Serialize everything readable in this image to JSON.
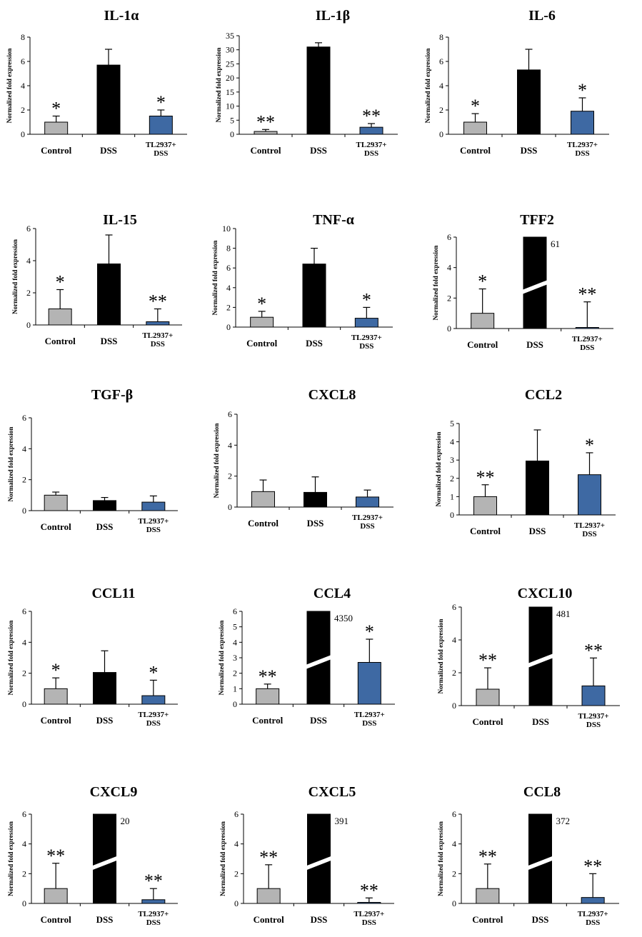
{
  "figure": {
    "y_axis_label": "Normalized fold expression",
    "bar_colors": {
      "Control": "#b4b4b4",
      "DSS": "#000000",
      "TL2937+DSS": "#3e69a3"
    }
  },
  "chart_data": [
    {
      "type": "bar",
      "title": "IL-1α",
      "ylabel": "Normalized fold expression",
      "categories": [
        "Control",
        "DSS",
        "TL2937+DSS"
      ],
      "values": [
        1.0,
        5.7,
        1.5
      ],
      "errors": [
        0.5,
        1.3,
        0.5
      ],
      "significance": [
        "*",
        "",
        "*"
      ],
      "ylim": [
        0,
        8
      ],
      "yticks": [
        0,
        2,
        4,
        6,
        8
      ],
      "break_labels": [
        "",
        "",
        ""
      ]
    },
    {
      "type": "bar",
      "title": "IL-1β",
      "ylabel": "Normalized fold expression",
      "categories": [
        "Control",
        "DSS",
        "TL2937+DSS"
      ],
      "values": [
        1.0,
        31.0,
        2.5
      ],
      "errors": [
        0.7,
        1.5,
        1.3
      ],
      "significance": [
        "**",
        "",
        "**"
      ],
      "ylim": [
        0,
        35
      ],
      "yticks": [
        0,
        5,
        10,
        15,
        20,
        25,
        30,
        35
      ],
      "break_labels": [
        "",
        "",
        ""
      ]
    },
    {
      "type": "bar",
      "title": "IL-6",
      "ylabel": "Normalized fold expression",
      "categories": [
        "Control",
        "DSS",
        "TL2937+DSS"
      ],
      "values": [
        1.0,
        5.3,
        1.9
      ],
      "errors": [
        0.7,
        1.7,
        1.1
      ],
      "significance": [
        "*",
        "",
        "*"
      ],
      "ylim": [
        0,
        8
      ],
      "yticks": [
        0,
        2,
        4,
        6,
        8
      ],
      "break_labels": [
        "",
        "",
        ""
      ]
    },
    {
      "type": "bar",
      "title": "IL-15",
      "ylabel": "Normalized fold expression",
      "categories": [
        "Control",
        "DSS",
        "TL2937+DSS"
      ],
      "values": [
        1.0,
        3.8,
        0.2
      ],
      "errors": [
        1.2,
        1.8,
        0.8
      ],
      "significance": [
        "*",
        "",
        "**"
      ],
      "ylim": [
        0,
        6
      ],
      "yticks": [
        0,
        2,
        4,
        6
      ],
      "break_labels": [
        "",
        "",
        ""
      ]
    },
    {
      "type": "bar",
      "title": "TNF-α",
      "ylabel": "Normalized fold expression",
      "categories": [
        "Control",
        "DSS",
        "TL2937+DSS"
      ],
      "values": [
        1.0,
        6.4,
        0.9
      ],
      "errors": [
        0.6,
        1.6,
        1.1
      ],
      "significance": [
        "*",
        "",
        "*"
      ],
      "ylim": [
        0,
        10
      ],
      "yticks": [
        0,
        2,
        4,
        6,
        8,
        10
      ],
      "break_labels": [
        "",
        "",
        ""
      ]
    },
    {
      "type": "bar",
      "title": "TFF2",
      "ylabel": "Normalized fold expression",
      "categories": [
        "Control",
        "DSS",
        "TL2937+DSS"
      ],
      "values": [
        1.0,
        6.0,
        0.05
      ],
      "errors": [
        1.6,
        0,
        1.7
      ],
      "significance": [
        "*",
        "",
        "**"
      ],
      "ylim": [
        0,
        6
      ],
      "yticks": [
        0,
        2,
        4,
        6
      ],
      "break_labels": [
        "",
        "61",
        ""
      ]
    },
    {
      "type": "bar",
      "title": "TGF-β",
      "ylabel": "Normalized fold expression",
      "categories": [
        "Control",
        "DSS",
        "TL2937+DSS"
      ],
      "values": [
        1.0,
        0.65,
        0.55
      ],
      "errors": [
        0.2,
        0.2,
        0.4
      ],
      "significance": [
        "",
        "",
        ""
      ],
      "ylim": [
        0,
        6
      ],
      "yticks": [
        0,
        2,
        4,
        6
      ],
      "break_labels": [
        "",
        "",
        ""
      ]
    },
    {
      "type": "bar",
      "title": "CXCL8",
      "ylabel": "Normalized fold expression",
      "categories": [
        "Control",
        "DSS",
        "TL2937+DSS"
      ],
      "values": [
        1.0,
        0.95,
        0.65
      ],
      "errors": [
        0.75,
        1.0,
        0.45
      ],
      "significance": [
        "",
        "",
        ""
      ],
      "ylim": [
        0,
        6
      ],
      "yticks": [
        0,
        2,
        4,
        6
      ],
      "break_labels": [
        "",
        "",
        ""
      ]
    },
    {
      "type": "bar",
      "title": "CCL2",
      "ylabel": "Normalized fold expression",
      "categories": [
        "Control",
        "DSS",
        "TL2937+DSS"
      ],
      "values": [
        1.0,
        2.95,
        2.2
      ],
      "errors": [
        0.65,
        1.7,
        1.2
      ],
      "significance": [
        "**",
        "",
        "*"
      ],
      "ylim": [
        0,
        5
      ],
      "yticks": [
        0,
        1,
        2,
        3,
        4,
        5
      ],
      "break_labels": [
        "",
        "",
        ""
      ]
    },
    {
      "type": "bar",
      "title": "CCL11",
      "ylabel": "Normalized fold expression",
      "categories": [
        "Control",
        "DSS",
        "TL2937+DSS"
      ],
      "values": [
        1.0,
        2.05,
        0.55
      ],
      "errors": [
        0.7,
        1.4,
        1.0
      ],
      "significance": [
        "*",
        "",
        "*"
      ],
      "ylim": [
        0,
        6
      ],
      "yticks": [
        0,
        2,
        4,
        6
      ],
      "break_labels": [
        "",
        "",
        ""
      ]
    },
    {
      "type": "bar",
      "title": "CCL4",
      "ylabel": "Normalized fold expression",
      "categories": [
        "Control",
        "DSS",
        "TL2937+DSS"
      ],
      "values": [
        1.0,
        6.0,
        2.7
      ],
      "errors": [
        0.3,
        0,
        1.5
      ],
      "significance": [
        "**",
        "",
        "*"
      ],
      "ylim": [
        0,
        6
      ],
      "yticks": [
        0,
        1,
        2,
        3,
        4,
        5,
        6
      ],
      "break_labels": [
        "",
        "4350",
        ""
      ]
    },
    {
      "type": "bar",
      "title": "CXCL10",
      "ylabel": "Normalized fold expression",
      "categories": [
        "Control",
        "DSS",
        "TL2937+DSS"
      ],
      "values": [
        1.0,
        6.0,
        1.2
      ],
      "errors": [
        1.3,
        0,
        1.7
      ],
      "significance": [
        "**",
        "",
        "**"
      ],
      "ylim": [
        0,
        6
      ],
      "yticks": [
        0,
        2,
        4,
        6
      ],
      "break_labels": [
        "",
        "481",
        ""
      ]
    },
    {
      "type": "bar",
      "title": "CXCL9",
      "ylabel": "Normalized fold expression",
      "categories": [
        "Control",
        "DSS",
        "TL2937+DSS"
      ],
      "values": [
        1.0,
        6.0,
        0.25
      ],
      "errors": [
        1.7,
        0,
        0.75
      ],
      "significance": [
        "**",
        "",
        "**"
      ],
      "ylim": [
        0,
        6
      ],
      "yticks": [
        0,
        2,
        4,
        6
      ],
      "break_labels": [
        "",
        "20",
        ""
      ]
    },
    {
      "type": "bar",
      "title": "CXCL5",
      "ylabel": "Normalized fold expression",
      "categories": [
        "Control",
        "DSS",
        "TL2937+DSS"
      ],
      "values": [
        1.0,
        6.0,
        0.02
      ],
      "errors": [
        1.6,
        0,
        0.35
      ],
      "significance": [
        "**",
        "",
        "**"
      ],
      "ylim": [
        0,
        6
      ],
      "yticks": [
        0,
        2,
        4,
        6
      ],
      "break_labels": [
        "",
        "391",
        ""
      ]
    },
    {
      "type": "bar",
      "title": "CCL8",
      "ylabel": "Normalized fold expression",
      "categories": [
        "Control",
        "DSS",
        "TL2937+DSS"
      ],
      "values": [
        1.0,
        6.0,
        0.4
      ],
      "errors": [
        1.65,
        0,
        1.6
      ],
      "significance": [
        "**",
        "",
        "**"
      ],
      "ylim": [
        0,
        6
      ],
      "yticks": [
        0,
        2,
        4,
        6
      ],
      "break_labels": [
        "",
        "372",
        ""
      ]
    }
  ]
}
